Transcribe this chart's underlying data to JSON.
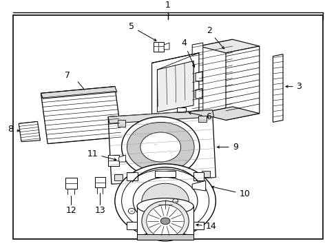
{
  "bg": "#ffffff",
  "lc": "#000000",
  "fig_w": 4.89,
  "fig_h": 3.6,
  "dpi": 100
}
